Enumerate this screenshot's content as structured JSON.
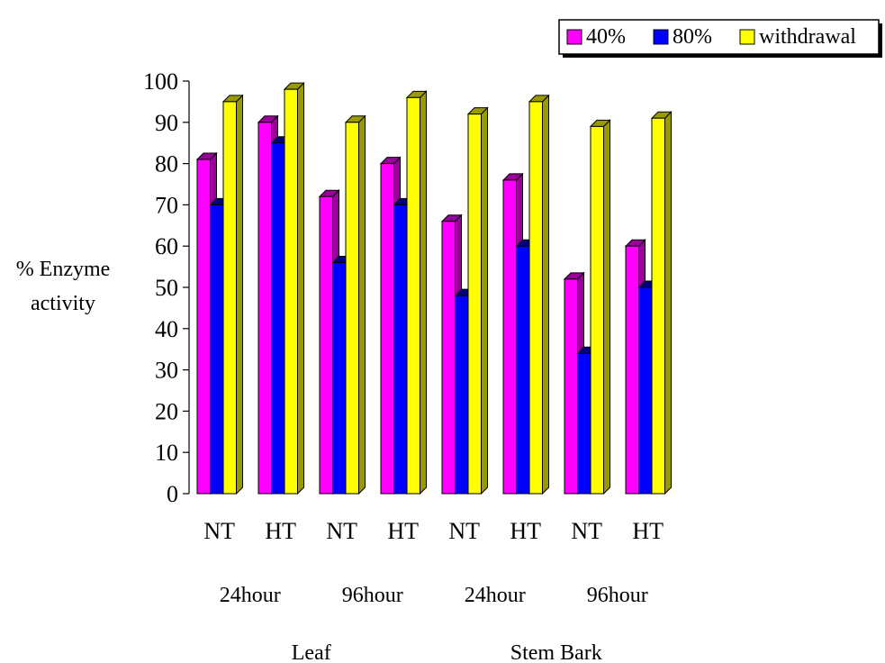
{
  "chart_data": {
    "type": "bar",
    "ylabel_lines": [
      "% Enzyme",
      "activity"
    ],
    "ylim": [
      0,
      100
    ],
    "yticks": [
      0,
      10,
      20,
      30,
      40,
      50,
      60,
      70,
      80,
      90,
      100
    ],
    "categories": [
      "NT",
      "HT",
      "NT",
      "HT",
      "NT",
      "HT",
      "NT",
      "HT"
    ],
    "groups": [
      {
        "label": "24hour",
        "span": [
          0,
          1
        ]
      },
      {
        "label": "96hour",
        "span": [
          2,
          3
        ]
      },
      {
        "label": "24hour",
        "span": [
          4,
          5
        ]
      },
      {
        "label": "96hour",
        "span": [
          6,
          7
        ]
      }
    ],
    "super_groups": [
      {
        "label": "Leaf",
        "span": [
          0,
          3
        ]
      },
      {
        "label": "Stem Bark",
        "span": [
          4,
          7
        ]
      }
    ],
    "series": [
      {
        "name": "40%",
        "color": "#ff00ff",
        "side_color": "#990099",
        "values": [
          81,
          90,
          72,
          80,
          66,
          76,
          52,
          60
        ]
      },
      {
        "name": "80%",
        "color": "#0000ff",
        "side_color": "#000080",
        "values": [
          70,
          85,
          56,
          70,
          48,
          60,
          34,
          50
        ]
      },
      {
        "name": "withdrawal",
        "color": "#ffff00",
        "side_color": "#999900",
        "values": [
          95,
          98,
          90,
          96,
          92,
          95,
          89,
          91
        ]
      }
    ],
    "legend_position": "top-right",
    "grid": false
  }
}
